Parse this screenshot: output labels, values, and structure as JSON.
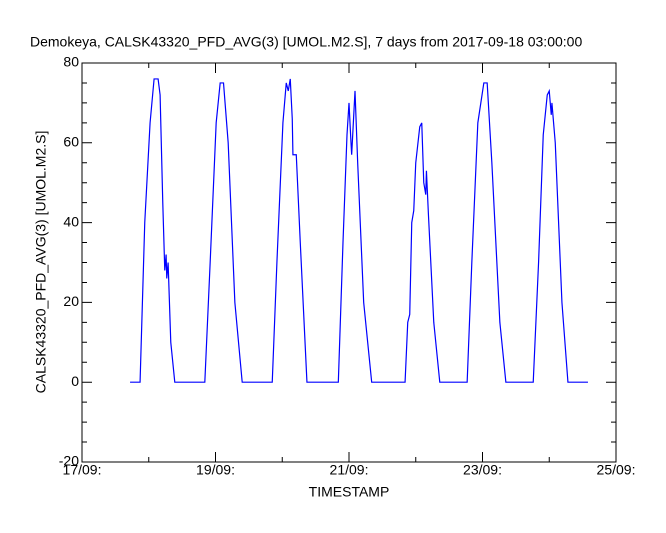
{
  "chart_data": {
    "type": "line",
    "title": "Demokeya, CALSK43320_PFD_AVG(3) [UMOL.M2.S], 7 days from  2017-09-18 03:00:00",
    "x_label": "TIMESTAMP",
    "y_label": "CALSK43320_PFD_AVG(3) [UMOL.M2.S]",
    "xlim": [
      17,
      25
    ],
    "xticks": [
      {
        "value": 17,
        "label": "17/09:"
      },
      {
        "value": 19,
        "label": "19/09:"
      },
      {
        "value": 21,
        "label": "21/09:"
      },
      {
        "value": 23,
        "label": "23/09:"
      },
      {
        "value": 25,
        "label": "25/09:"
      }
    ],
    "xminorticks": [
      18,
      20,
      22,
      24
    ],
    "ylim": [
      -20,
      80
    ],
    "yticks": [
      -20,
      0,
      20,
      40,
      60,
      80
    ],
    "yminorticks": [
      -15,
      -10,
      -5,
      5,
      10,
      15,
      25,
      30,
      35,
      45,
      50,
      55,
      65,
      70,
      75
    ],
    "series": [
      {
        "color": "#0000ff",
        "x": [
          17.72,
          17.87,
          17.94,
          18.02,
          18.08,
          18.14,
          18.17,
          18.21,
          18.24,
          18.26,
          18.27,
          18.29,
          18.33,
          18.39,
          18.84,
          18.92,
          19.01,
          19.07,
          19.12,
          19.19,
          19.29,
          19.4,
          19.85,
          19.92,
          20.01,
          20.06,
          20.09,
          20.12,
          20.15,
          20.16,
          20.21,
          20.27,
          20.37,
          20.84,
          20.91,
          20.97,
          21.0,
          21.03,
          21.04,
          21.09,
          21.13,
          21.22,
          21.34,
          21.84,
          21.88,
          21.91,
          21.94,
          21.97,
          22.0,
          22.06,
          22.09,
          22.12,
          22.15,
          22.16,
          22.19,
          22.27,
          22.36,
          22.77,
          22.84,
          22.93,
          23.02,
          23.07,
          23.14,
          23.26,
          23.35,
          23.76,
          23.84,
          23.91,
          23.97,
          24.0,
          24.03,
          24.04,
          24.09,
          24.19,
          24.28,
          24.58
        ],
        "values": [
          0,
          0,
          40,
          65,
          76,
          76,
          72,
          45,
          28,
          32,
          26,
          30,
          10,
          0,
          0,
          30,
          65,
          75,
          75,
          60,
          20,
          0,
          0,
          30,
          65,
          75,
          73,
          76,
          66,
          57,
          57,
          35,
          0,
          0,
          35,
          62,
          70,
          60,
          57,
          73,
          55,
          20,
          0,
          0,
          15,
          17,
          40,
          43,
          55,
          64,
          65,
          50,
          47,
          53,
          42,
          15,
          0,
          0,
          30,
          65,
          75,
          75,
          55,
          15,
          0,
          0,
          30,
          62,
          72,
          73,
          67,
          70,
          60,
          20,
          0,
          0
        ]
      }
    ]
  }
}
